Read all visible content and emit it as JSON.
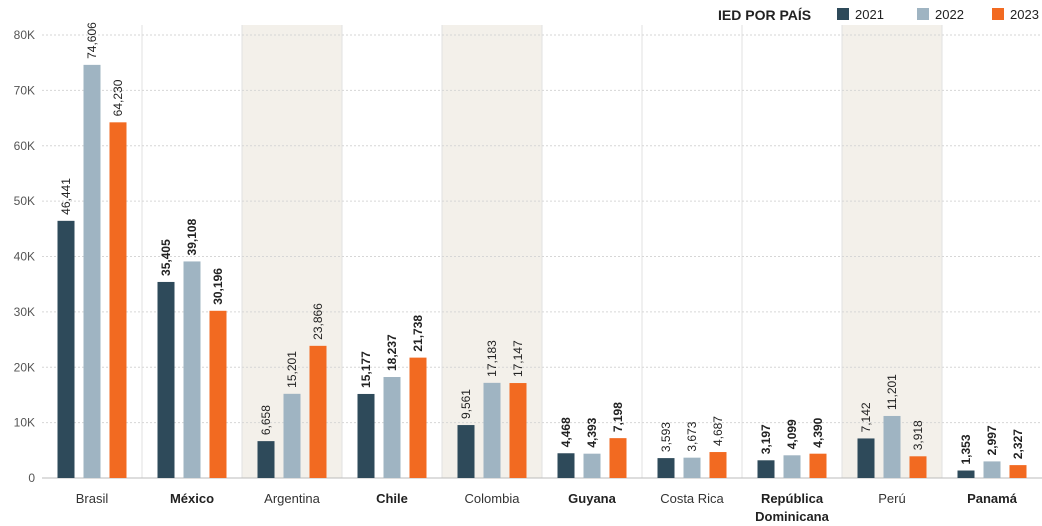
{
  "chart_data": {
    "type": "bar",
    "categories": [
      "Brasil",
      "México",
      "Argentina",
      "Chile",
      "Colombia",
      "Guyana",
      "Costa Rica",
      "República Dominicana",
      "Perú",
      "Panamá"
    ],
    "category_lines": [
      [
        "Brasil"
      ],
      [
        "México"
      ],
      [
        "Argentina"
      ],
      [
        "Chile"
      ],
      [
        "Colombia"
      ],
      [
        "Guyana"
      ],
      [
        "Costa Rica"
      ],
      [
        "República",
        "Dominicana"
      ],
      [
        "Perú"
      ],
      [
        "Panamá"
      ]
    ],
    "bold_categories": [
      "México",
      "Chile",
      "Guyana",
      "República Dominicana",
      "Panamá"
    ],
    "shaded_categories": [
      "Argentina",
      "Colombia",
      "Perú"
    ],
    "series": [
      {
        "name": "2021",
        "color": "#2e4a5a",
        "values": [
          46441,
          35405,
          6658,
          15177,
          9561,
          4468,
          3593,
          3197,
          7142,
          1353
        ],
        "labels": [
          "46,441",
          "35,405",
          "6,658",
          "15,177",
          "9,561",
          "4,468",
          "3,593",
          "3,197",
          "7,142",
          "1,353"
        ]
      },
      {
        "name": "2022",
        "color": "#9fb4c2",
        "values": [
          74606,
          39108,
          15201,
          18237,
          17183,
          4393,
          3673,
          4099,
          11201,
          2997
        ],
        "labels": [
          "74,606",
          "39,108",
          "15,201",
          "18,237",
          "17,183",
          "4,393",
          "3,673",
          "4,099",
          "11,201",
          "2,997"
        ]
      },
      {
        "name": "2023",
        "color": "#f26a21",
        "values": [
          64230,
          30196,
          23866,
          21738,
          17147,
          7198,
          4687,
          4390,
          3918,
          2327
        ],
        "labels": [
          "64,230",
          "30,196",
          "23,866",
          "21,738",
          "17,147",
          "7,198",
          "4,687",
          "4,390",
          "3,918",
          "2,327"
        ]
      }
    ],
    "ylim": [
      0,
      80000
    ],
    "yticks": [
      0,
      10000,
      20000,
      30000,
      40000,
      50000,
      60000,
      70000,
      80000
    ],
    "ytick_labels": [
      "0",
      "10K",
      "20K",
      "30K",
      "40K",
      "50K",
      "60K",
      "70K",
      "80K"
    ],
    "legend_title": "IED POR PAÍS",
    "legend_placement": "top-right",
    "grid": true,
    "colors": {
      "shade": "#f3f0ea",
      "grid": "#d6d6d6",
      "divider": "#e2e2e2",
      "axis": "#bbbbbb"
    }
  }
}
